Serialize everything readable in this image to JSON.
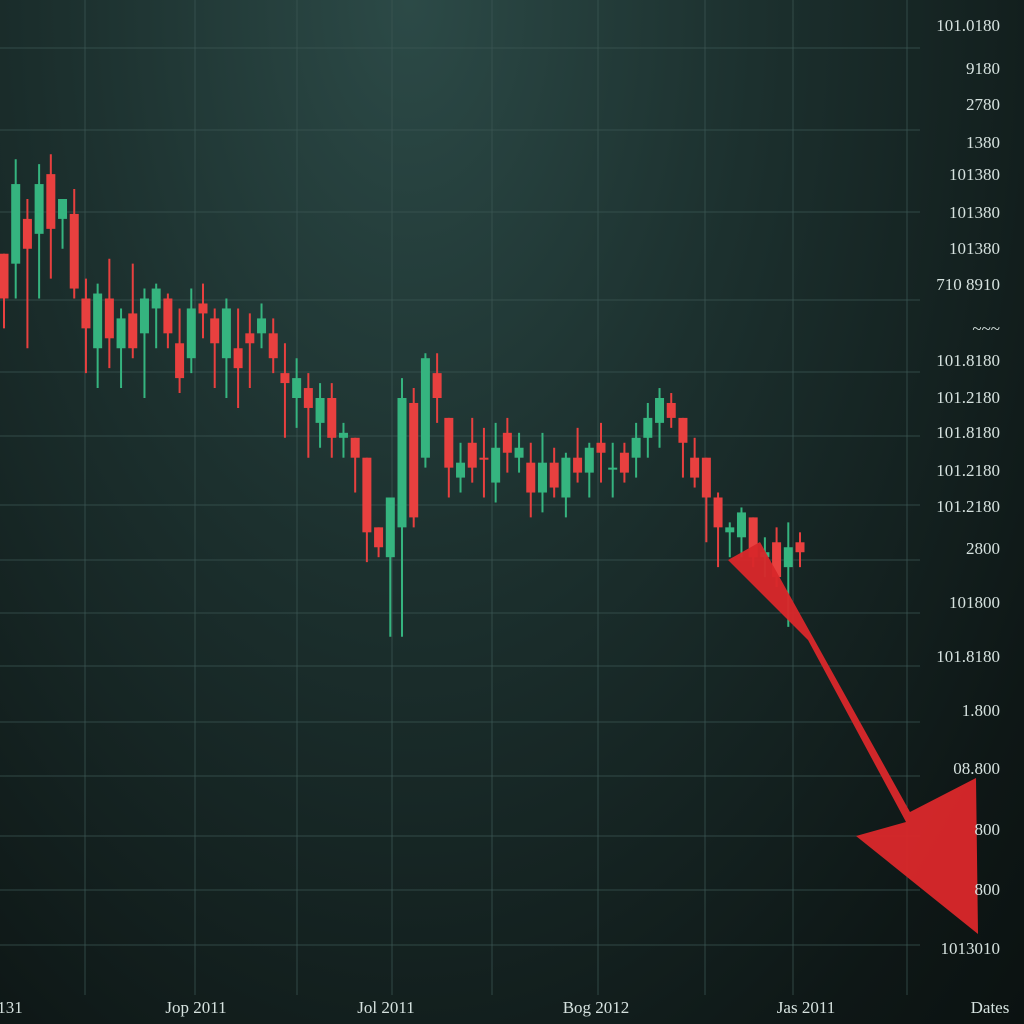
{
  "colors": {
    "background_top": "#2c4a47",
    "background_bottom": "#0b1211",
    "up": "#35b47f",
    "down": "#e8403f",
    "arrow": "#d8282b",
    "grid": "#3b5653",
    "text": "#d6e2df"
  },
  "chart_data": {
    "type": "candlestick",
    "title": "",
    "xlabel": "",
    "ylabel": "",
    "grid": true,
    "y_tick_labels": [
      "101.0180",
      "9180",
      "2780",
      "1380",
      "101380",
      "101380",
      "101380",
      "710 8910",
      "~~~",
      "101.8180",
      "101.2180",
      "101.8180",
      "101.2180",
      "101.2180",
      "2800",
      "101800",
      "101.8180",
      "1.800",
      "08.800",
      "800",
      "800",
      "1013010"
    ],
    "x_tick_labels": [
      "131",
      "Jop 2011",
      "Jol 2011",
      "Bog 2012",
      "Jas 2011",
      "Dates"
    ],
    "trend_arrow": "down",
    "ylim": [
      0,
      1000
    ],
    "candles": [
      {
        "o": 745,
        "h": 740,
        "l": 670,
        "c": 700,
        "dir": "down"
      },
      {
        "o": 735,
        "h": 840,
        "l": 700,
        "c": 815,
        "dir": "up"
      },
      {
        "o": 780,
        "h": 800,
        "l": 650,
        "c": 750,
        "dir": "down"
      },
      {
        "o": 765,
        "h": 835,
        "l": 700,
        "c": 815,
        "dir": "up"
      },
      {
        "o": 825,
        "h": 845,
        "l": 720,
        "c": 770,
        "dir": "down"
      },
      {
        "o": 780,
        "h": 800,
        "l": 750,
        "c": 800,
        "dir": "up"
      },
      {
        "o": 785,
        "h": 810,
        "l": 700,
        "c": 710,
        "dir": "down"
      },
      {
        "o": 700,
        "h": 720,
        "l": 625,
        "c": 670,
        "dir": "down"
      },
      {
        "o": 650,
        "h": 715,
        "l": 610,
        "c": 705,
        "dir": "up"
      },
      {
        "o": 700,
        "h": 740,
        "l": 630,
        "c": 660,
        "dir": "down"
      },
      {
        "o": 650,
        "h": 690,
        "l": 610,
        "c": 680,
        "dir": "up"
      },
      {
        "o": 685,
        "h": 735,
        "l": 640,
        "c": 650,
        "dir": "down"
      },
      {
        "o": 665,
        "h": 710,
        "l": 600,
        "c": 700,
        "dir": "up"
      },
      {
        "o": 710,
        "h": 715,
        "l": 650,
        "c": 690,
        "dir": "up"
      },
      {
        "o": 700,
        "h": 705,
        "l": 650,
        "c": 665,
        "dir": "down"
      },
      {
        "o": 655,
        "h": 690,
        "l": 605,
        "c": 620,
        "dir": "down"
      },
      {
        "o": 640,
        "h": 710,
        "l": 625,
        "c": 690,
        "dir": "up"
      },
      {
        "o": 695,
        "h": 715,
        "l": 660,
        "c": 685,
        "dir": "down"
      },
      {
        "o": 680,
        "h": 690,
        "l": 610,
        "c": 655,
        "dir": "down"
      },
      {
        "o": 640,
        "h": 700,
        "l": 600,
        "c": 690,
        "dir": "up"
      },
      {
        "o": 630,
        "h": 690,
        "l": 590,
        "c": 650,
        "dir": "down"
      },
      {
        "o": 655,
        "h": 685,
        "l": 610,
        "c": 665,
        "dir": "down"
      },
      {
        "o": 665,
        "h": 695,
        "l": 650,
        "c": 680,
        "dir": "up"
      },
      {
        "o": 665,
        "h": 680,
        "l": 625,
        "c": 640,
        "dir": "down"
      },
      {
        "o": 625,
        "h": 655,
        "l": 560,
        "c": 615,
        "dir": "down"
      },
      {
        "o": 600,
        "h": 640,
        "l": 570,
        "c": 620,
        "dir": "up"
      },
      {
        "o": 610,
        "h": 625,
        "l": 540,
        "c": 590,
        "dir": "down"
      },
      {
        "o": 575,
        "h": 615,
        "l": 550,
        "c": 600,
        "dir": "up"
      },
      {
        "o": 600,
        "h": 615,
        "l": 540,
        "c": 560,
        "dir": "down"
      },
      {
        "o": 565,
        "h": 575,
        "l": 540,
        "c": 560,
        "dir": "up"
      },
      {
        "o": 560,
        "h": 555,
        "l": 505,
        "c": 540,
        "dir": "down"
      },
      {
        "o": 540,
        "h": 535,
        "l": 435,
        "c": 465,
        "dir": "down"
      },
      {
        "o": 470,
        "h": 470,
        "l": 440,
        "c": 450,
        "dir": "down"
      },
      {
        "o": 500,
        "h": 500,
        "l": 360,
        "c": 440,
        "dir": "up"
      },
      {
        "o": 470,
        "h": 620,
        "l": 360,
        "c": 600,
        "dir": "up"
      },
      {
        "o": 595,
        "h": 610,
        "l": 470,
        "c": 480,
        "dir": "down"
      },
      {
        "o": 540,
        "h": 645,
        "l": 530,
        "c": 640,
        "dir": "up"
      },
      {
        "o": 625,
        "h": 645,
        "l": 575,
        "c": 600,
        "dir": "down"
      },
      {
        "o": 580,
        "h": 580,
        "l": 500,
        "c": 530,
        "dir": "down"
      },
      {
        "o": 520,
        "h": 555,
        "l": 505,
        "c": 535,
        "dir": "up"
      },
      {
        "o": 555,
        "h": 580,
        "l": 515,
        "c": 530,
        "dir": "down"
      },
      {
        "o": 540,
        "h": 570,
        "l": 500,
        "c": 540,
        "dir": "down"
      },
      {
        "o": 515,
        "h": 575,
        "l": 495,
        "c": 550,
        "dir": "up"
      },
      {
        "o": 565,
        "h": 580,
        "l": 525,
        "c": 545,
        "dir": "down"
      },
      {
        "o": 540,
        "h": 565,
        "l": 525,
        "c": 550,
        "dir": "up"
      },
      {
        "o": 535,
        "h": 555,
        "l": 480,
        "c": 505,
        "dir": "down"
      },
      {
        "o": 505,
        "h": 565,
        "l": 485,
        "c": 535,
        "dir": "up"
      },
      {
        "o": 535,
        "h": 550,
        "l": 500,
        "c": 510,
        "dir": "down"
      },
      {
        "o": 500,
        "h": 545,
        "l": 480,
        "c": 540,
        "dir": "up"
      },
      {
        "o": 540,
        "h": 570,
        "l": 515,
        "c": 525,
        "dir": "down"
      },
      {
        "o": 525,
        "h": 555,
        "l": 500,
        "c": 550,
        "dir": "up"
      },
      {
        "o": 555,
        "h": 575,
        "l": 515,
        "c": 545,
        "dir": "down"
      },
      {
        "o": 530,
        "h": 555,
        "l": 500,
        "c": 530,
        "dir": "up"
      },
      {
        "o": 545,
        "h": 555,
        "l": 515,
        "c": 525,
        "dir": "down"
      },
      {
        "o": 540,
        "h": 575,
        "l": 520,
        "c": 560,
        "dir": "up"
      },
      {
        "o": 560,
        "h": 595,
        "l": 540,
        "c": 580,
        "dir": "up"
      },
      {
        "o": 575,
        "h": 610,
        "l": 550,
        "c": 600,
        "dir": "up"
      },
      {
        "o": 595,
        "h": 605,
        "l": 570,
        "c": 580,
        "dir": "down"
      },
      {
        "o": 580,
        "h": 580,
        "l": 520,
        "c": 555,
        "dir": "down"
      },
      {
        "o": 540,
        "h": 560,
        "l": 510,
        "c": 520,
        "dir": "down"
      },
      {
        "o": 540,
        "h": 540,
        "l": 455,
        "c": 500,
        "dir": "down"
      },
      {
        "o": 500,
        "h": 505,
        "l": 430,
        "c": 470,
        "dir": "down"
      },
      {
        "o": 470,
        "h": 475,
        "l": 440,
        "c": 465,
        "dir": "up"
      },
      {
        "o": 460,
        "h": 490,
        "l": 440,
        "c": 485,
        "dir": "up"
      },
      {
        "o": 480,
        "h": 480,
        "l": 430,
        "c": 440,
        "dir": "down"
      },
      {
        "o": 440,
        "h": 460,
        "l": 420,
        "c": 445,
        "dir": "up"
      },
      {
        "o": 455,
        "h": 470,
        "l": 410,
        "c": 420,
        "dir": "down"
      },
      {
        "o": 430,
        "h": 475,
        "l": 370,
        "c": 450,
        "dir": "up"
      },
      {
        "o": 455,
        "h": 465,
        "l": 430,
        "c": 445,
        "dir": "down"
      }
    ]
  },
  "arrow_label": "down-trend-arrow"
}
